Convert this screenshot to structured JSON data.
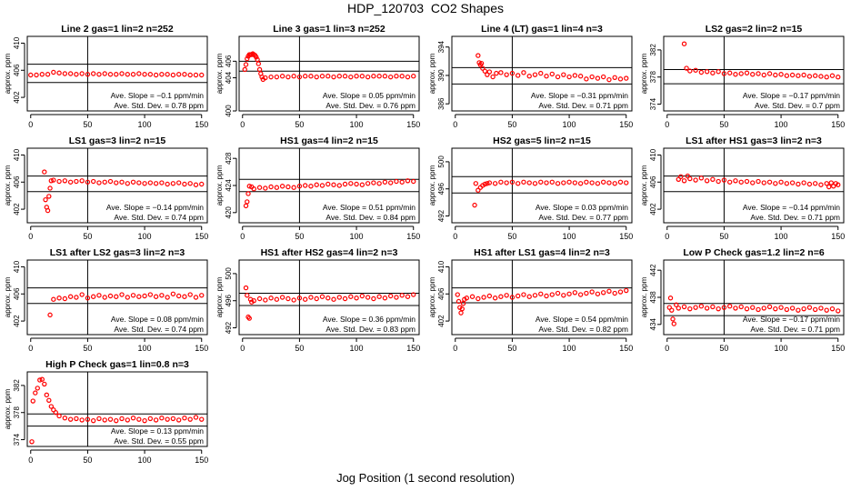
{
  "figure": {
    "title": "HDP_120703  CO2 Shapes",
    "xlabel": "Jog Position (1 second resolution)",
    "colors": {
      "points": "#ff0000",
      "axes": "#000000",
      "background": "#ffffff"
    }
  },
  "chart_data": [
    {
      "type": "scatter",
      "title": "Line 2 gas=1 lin=2 n=252",
      "xlabel": "",
      "ylabel": "approx. ppm",
      "xlim": [
        -3,
        155
      ],
      "xticks": [
        0,
        50,
        100,
        150
      ],
      "ylim": [
        400,
        411
      ],
      "yticks": [
        402,
        406,
        410
      ],
      "hlines": [
        406.9,
        404.2
      ],
      "vline": 50,
      "slope_label": "Ave. Slope =  −0.1  ppm/min",
      "std_label": "Ave. Std. Dev. =  0.78  ppm",
      "x": [
        0,
        5,
        10,
        15,
        20,
        25,
        30,
        35,
        40,
        45,
        50,
        55,
        60,
        65,
        70,
        75,
        80,
        85,
        90,
        95,
        100,
        105,
        110,
        115,
        120,
        125,
        130,
        135,
        140,
        145,
        150
      ],
      "y": [
        405.3,
        405.3,
        405.4,
        405.4,
        405.7,
        405.6,
        405.5,
        405.5,
        405.4,
        405.5,
        405.4,
        405.5,
        405.4,
        405.5,
        405.4,
        405.4,
        405.5,
        405.4,
        405.4,
        405.5,
        405.4,
        405.4,
        405.3,
        405.4,
        405.4,
        405.3,
        405.4,
        405.4,
        405.3,
        405.3,
        405.3
      ]
    },
    {
      "type": "scatter",
      "title": "Line 3 gas=1 lin=3 n=252",
      "xlabel": "",
      "ylabel": "approx. ppm",
      "xlim": [
        -3,
        155
      ],
      "xticks": [
        0,
        50,
        100,
        150
      ],
      "ylim": [
        400,
        409
      ],
      "yticks": [
        400,
        404,
        406
      ],
      "hlines": [
        406.0,
        404.8
      ],
      "vline": 50,
      "slope_label": "Ave. Slope =  0.05  ppm/min",
      "std_label": "Ave. Std. Dev. =  0.76  ppm",
      "x": [
        2,
        3,
        4,
        5,
        6,
        7,
        8,
        9,
        10,
        11,
        12,
        13,
        14,
        15,
        16,
        17,
        18,
        20,
        25,
        30,
        35,
        40,
        45,
        50,
        55,
        60,
        65,
        70,
        75,
        80,
        85,
        90,
        95,
        100,
        105,
        110,
        115,
        120,
        125,
        130,
        135,
        140,
        145,
        150
      ],
      "y": [
        405.0,
        405.6,
        406.3,
        406.6,
        406.8,
        406.8,
        406.8,
        406.9,
        406.8,
        406.7,
        406.5,
        406.2,
        405.7,
        405.0,
        404.5,
        404.1,
        403.8,
        404.0,
        404.1,
        404.1,
        404.2,
        404.1,
        404.2,
        404.1,
        404.2,
        404.2,
        404.1,
        404.2,
        404.2,
        404.1,
        404.2,
        404.2,
        404.1,
        404.2,
        404.2,
        404.1,
        404.2,
        404.2,
        404.2,
        404.1,
        404.2,
        404.2,
        404.1,
        404.2
      ]
    },
    {
      "type": "scatter",
      "title": "Line 4 (LT) gas=1 lin=4 n=3",
      "xlabel": "",
      "ylabel": "approx. ppm",
      "xlim": [
        -3,
        155
      ],
      "xticks": [
        0,
        50,
        100,
        150
      ],
      "ylim": [
        385,
        395.5
      ],
      "yticks": [
        386,
        390,
        394
      ],
      "hlines": [
        391.1,
        388.8
      ],
      "vline": 50,
      "slope_label": "Ave. Slope =  −0.31  ppm/min",
      "std_label": "Ave. Std. Dev. =  0.71  ppm",
      "x": [
        20,
        21,
        22,
        23,
        24,
        26,
        28,
        30,
        33,
        36,
        40,
        45,
        50,
        55,
        60,
        65,
        70,
        75,
        80,
        85,
        90,
        95,
        100,
        105,
        110,
        115,
        120,
        125,
        130,
        135,
        140,
        145,
        150
      ],
      "y": [
        392.8,
        391.8,
        391.5,
        391.7,
        391.0,
        390.6,
        390.1,
        390.5,
        389.8,
        390.3,
        390.4,
        390.1,
        390.3,
        390.0,
        390.4,
        389.9,
        390.1,
        390.3,
        389.9,
        390.2,
        389.8,
        390.1,
        389.8,
        390.0,
        389.9,
        389.5,
        389.8,
        389.6,
        389.8,
        389.4,
        389.7,
        389.5,
        389.6
      ]
    },
    {
      "type": "scatter",
      "title": "LS2 gas=2 lin=2 n=15",
      "xlabel": "",
      "ylabel": "approx. ppm",
      "xlim": [
        -3,
        155
      ],
      "xticks": [
        0,
        50,
        100,
        150
      ],
      "ylim": [
        373,
        384
      ],
      "yticks": [
        374,
        378,
        382
      ],
      "hlines": [
        379.1,
        377.0
      ],
      "vline": 50,
      "slope_label": "Ave. Slope =  −0.17  ppm/min",
      "std_label": "Ave. Std. Dev. =  0.7  ppm",
      "x": [
        15,
        17,
        20,
        25,
        30,
        35,
        40,
        45,
        50,
        55,
        60,
        65,
        70,
        75,
        80,
        85,
        90,
        95,
        100,
        105,
        110,
        115,
        120,
        125,
        130,
        135,
        140,
        145,
        150
      ],
      "y": [
        382.9,
        379.3,
        378.9,
        379.0,
        378.7,
        378.8,
        378.6,
        378.8,
        378.5,
        378.6,
        378.4,
        378.5,
        378.6,
        378.4,
        378.5,
        378.3,
        378.5,
        378.3,
        378.4,
        378.2,
        378.3,
        378.2,
        378.3,
        378.1,
        378.2,
        378.1,
        378.0,
        378.2,
        378.0
      ]
    },
    {
      "type": "scatter",
      "title": "LS1 gas=3 lin=2 n=15",
      "xlabel": "",
      "ylabel": "approx. ppm",
      "xlim": [
        -3,
        155
      ],
      "xticks": [
        0,
        50,
        100,
        150
      ],
      "ylim": [
        400,
        411
      ],
      "yticks": [
        402,
        406,
        410
      ],
      "hlines": [
        406.9,
        404.6
      ],
      "vline": 50,
      "slope_label": "Ave. Slope =  −0.14  ppm/min",
      "std_label": "Ave. Std. Dev. =  0.74  ppm",
      "x": [
        12,
        13,
        14,
        15,
        16,
        17,
        18,
        20,
        25,
        30,
        35,
        40,
        45,
        50,
        55,
        60,
        65,
        70,
        75,
        80,
        85,
        90,
        95,
        100,
        105,
        110,
        115,
        120,
        125,
        130,
        135,
        140,
        145,
        150
      ],
      "y": [
        407.5,
        403.4,
        402.3,
        401.8,
        403.9,
        405.1,
        406.2,
        406.3,
        406.1,
        406.2,
        406.0,
        406.1,
        406.2,
        406.0,
        406.1,
        405.9,
        406.0,
        406.1,
        405.9,
        406.0,
        405.8,
        406.0,
        405.9,
        405.8,
        405.9,
        405.8,
        405.9,
        405.7,
        405.8,
        405.9,
        405.7,
        405.8,
        405.6,
        405.7
      ]
    },
    {
      "type": "scatter",
      "title": "HS1 gas=4 lin=2 n=15",
      "xlabel": "",
      "ylabel": "approx. ppm",
      "xlim": [
        -3,
        155
      ],
      "xticks": [
        0,
        50,
        100,
        150
      ],
      "ylim": [
        418.5,
        429.5
      ],
      "yticks": [
        420,
        424,
        428
      ],
      "hlines": [
        424.9,
        423.1
      ],
      "vline": 50,
      "slope_label": "Ave. Slope =  0.51  ppm/min",
      "std_label": "Ave. Std. Dev. =  0.84  ppm",
      "x": [
        3,
        4,
        5,
        6,
        8,
        10,
        15,
        20,
        25,
        30,
        35,
        40,
        45,
        50,
        55,
        60,
        65,
        70,
        75,
        80,
        85,
        90,
        95,
        100,
        105,
        110,
        115,
        120,
        125,
        130,
        135,
        140,
        145,
        150
      ],
      "y": [
        421.0,
        421.6,
        422.8,
        423.9,
        423.8,
        423.5,
        423.7,
        423.6,
        423.8,
        423.7,
        423.9,
        423.8,
        423.7,
        423.9,
        424.0,
        423.9,
        424.1,
        424.0,
        424.2,
        424.1,
        424.0,
        424.2,
        424.3,
        424.2,
        424.1,
        424.3,
        424.4,
        424.3,
        424.5,
        424.4,
        424.6,
        424.5,
        424.7,
        424.6
      ]
    },
    {
      "type": "scatter",
      "title": "HS2 gas=5 lin=2 n=15",
      "xlabel": "",
      "ylabel": "approx. ppm",
      "xlim": [
        -3,
        155
      ],
      "xticks": [
        0,
        50,
        100,
        150
      ],
      "ylim": [
        491,
        502
      ],
      "yticks": [
        492,
        496,
        500
      ],
      "hlines": [
        497.8,
        495.4
      ],
      "vline": 50,
      "slope_label": "Ave. Slope =  0.03  ppm/min",
      "std_label": "Ave. Std. Dev. =  0.77  ppm",
      "x": [
        17,
        18,
        20,
        22,
        24,
        26,
        28,
        30,
        35,
        40,
        45,
        50,
        55,
        60,
        65,
        70,
        75,
        80,
        85,
        90,
        95,
        100,
        105,
        110,
        115,
        120,
        125,
        130,
        135,
        140,
        145,
        150
      ],
      "y": [
        493.6,
        496.8,
        495.8,
        496.2,
        496.5,
        496.7,
        496.8,
        496.9,
        496.8,
        497.0,
        496.9,
        497.0,
        496.8,
        497.0,
        496.9,
        496.8,
        497.0,
        496.9,
        497.0,
        496.8,
        496.9,
        497.0,
        496.9,
        496.8,
        497.0,
        496.9,
        496.8,
        497.0,
        496.9,
        496.8,
        497.0,
        496.9
      ]
    },
    {
      "type": "scatter",
      "title": "LS1 after HS1 gas=3 lin=2 n=3",
      "xlabel": "",
      "ylabel": "approx. ppm",
      "xlim": [
        -3,
        155
      ],
      "xticks": [
        0,
        50,
        100,
        150
      ],
      "ylim": [
        400,
        411
      ],
      "yticks": [
        402,
        406,
        410
      ],
      "hlines": [
        406.9,
        404.6
      ],
      "vline": 50,
      "slope_label": "Ave. Slope =  −0.14  ppm/min",
      "std_label": "Ave. Std. Dev. =  0.71  ppm",
      "x": [
        10,
        12,
        15,
        18,
        20,
        25,
        30,
        35,
        40,
        45,
        50,
        55,
        60,
        65,
        70,
        75,
        80,
        85,
        90,
        95,
        100,
        105,
        110,
        115,
        120,
        125,
        130,
        135,
        140,
        142,
        144,
        146,
        148,
        150
      ],
      "y": [
        406.4,
        406.8,
        406.2,
        406.9,
        406.5,
        406.3,
        406.6,
        406.2,
        406.4,
        406.1,
        406.3,
        406.0,
        406.2,
        406.0,
        406.1,
        405.9,
        406.1,
        405.9,
        406.0,
        405.8,
        406.0,
        405.8,
        405.9,
        405.7,
        405.9,
        405.7,
        405.8,
        405.6,
        405.8,
        405.3,
        405.9,
        405.4,
        405.8,
        405.6
      ]
    },
    {
      "type": "scatter",
      "title": "LS1 after LS2 gas=3 lin=2 n=3",
      "xlabel": "",
      "ylabel": "approx. ppm",
      "xlim": [
        -3,
        155
      ],
      "xticks": [
        0,
        50,
        100,
        150
      ],
      "ylim": [
        400,
        411
      ],
      "yticks": [
        402,
        406,
        410
      ],
      "hlines": [
        406.9,
        404.6
      ],
      "vline": 50,
      "slope_label": "Ave. Slope =  0.08  ppm/min",
      "std_label": "Ave. Std. Dev. =  0.74  ppm",
      "x": [
        17,
        20,
        25,
        30,
        35,
        40,
        45,
        50,
        55,
        60,
        65,
        70,
        75,
        80,
        85,
        90,
        95,
        100,
        105,
        110,
        115,
        120,
        125,
        130,
        135,
        140,
        145,
        150
      ],
      "y": [
        402.9,
        405.2,
        405.4,
        405.3,
        405.6,
        405.5,
        405.9,
        405.4,
        405.6,
        405.8,
        405.5,
        405.7,
        405.6,
        405.9,
        405.5,
        405.8,
        405.6,
        405.7,
        405.9,
        405.6,
        405.8,
        405.5,
        406.0,
        405.7,
        405.6,
        405.9,
        405.5,
        405.8
      ]
    },
    {
      "type": "scatter",
      "title": "HS1 after HS2 gas=4 lin=2 n=3",
      "xlabel": "",
      "ylabel": "approx. ppm",
      "xlim": [
        -3,
        155
      ],
      "xticks": [
        0,
        50,
        100,
        150
      ],
      "ylim": [
        491,
        502
      ],
      "yticks": [
        492,
        496,
        500
      ],
      "hlines": [
        497.1,
        495.3
      ],
      "vline": 50,
      "slope_label": "Ave. Slope =  0.36  ppm/min",
      "std_label": "Ave. Std. Dev. =  0.83  ppm",
      "x": [
        3,
        4,
        5,
        6,
        7,
        8,
        10,
        15,
        20,
        25,
        30,
        35,
        40,
        45,
        50,
        55,
        60,
        65,
        70,
        75,
        80,
        85,
        90,
        95,
        100,
        105,
        110,
        115,
        120,
        125,
        130,
        135,
        140,
        145,
        150
      ],
      "y": [
        497.9,
        496.8,
        493.6,
        493.4,
        496.2,
        495.8,
        496.0,
        496.3,
        496.1,
        496.4,
        496.2,
        496.5,
        496.3,
        496.1,
        496.4,
        496.2,
        496.5,
        496.3,
        496.6,
        496.4,
        496.2,
        496.5,
        496.3,
        496.6,
        496.4,
        496.7,
        496.5,
        496.3,
        496.6,
        496.4,
        496.7,
        496.5,
        496.8,
        496.6,
        496.9
      ]
    },
    {
      "type": "scatter",
      "title": "HS1 after LS1 gas=4 lin=2 n=3",
      "xlabel": "",
      "ylabel": "approx. ppm",
      "xlim": [
        -3,
        155
      ],
      "xticks": [
        0,
        50,
        100,
        150
      ],
      "ylim": [
        400,
        411
      ],
      "yticks": [
        402,
        406,
        410
      ],
      "hlines": [
        406.9,
        404.7
      ],
      "vline": 50,
      "slope_label": "Ave. Slope =  0.54  ppm/min",
      "std_label": "Ave. Std. Dev. =  0.82  ppm",
      "x": [
        2,
        3,
        4,
        5,
        6,
        7,
        8,
        10,
        15,
        20,
        25,
        30,
        35,
        40,
        45,
        50,
        55,
        60,
        65,
        70,
        75,
        80,
        85,
        90,
        95,
        100,
        105,
        110,
        115,
        120,
        125,
        130,
        135,
        140,
        145,
        150
      ],
      "y": [
        405.9,
        404.9,
        404.0,
        403.2,
        403.8,
        404.6,
        405.2,
        405.4,
        405.6,
        405.3,
        405.5,
        405.7,
        405.4,
        405.6,
        405.8,
        405.5,
        405.7,
        405.9,
        405.6,
        405.8,
        406.0,
        405.7,
        405.9,
        406.1,
        405.8,
        406.0,
        406.2,
        405.9,
        406.1,
        406.3,
        406.0,
        406.2,
        406.4,
        406.1,
        406.3,
        406.5
      ]
    },
    {
      "type": "scatter",
      "title": "Low P Check gas=1.2 lin=2 n=6",
      "xlabel": "",
      "ylabel": "approx. ppm",
      "xlim": [
        -3,
        155
      ],
      "xticks": [
        0,
        50,
        100,
        150
      ],
      "ylim": [
        432.5,
        443.5
      ],
      "yticks": [
        434,
        438,
        442
      ],
      "hlines": [
        437.1,
        435.3
      ],
      "vline": 50,
      "slope_label": "Ave. Slope =  −0.17  ppm/min",
      "std_label": "Ave. Std. Dev. =  0.71  ppm",
      "x": [
        2,
        3,
        4,
        5,
        6,
        8,
        10,
        15,
        20,
        25,
        30,
        35,
        40,
        45,
        50,
        55,
        60,
        65,
        70,
        75,
        80,
        85,
        90,
        95,
        100,
        105,
        110,
        115,
        120,
        125,
        130,
        135,
        140,
        145,
        150
      ],
      "y": [
        436.5,
        437.9,
        436.1,
        434.8,
        434.1,
        436.9,
        436.4,
        436.6,
        436.3,
        436.5,
        436.7,
        436.4,
        436.6,
        436.3,
        436.5,
        436.7,
        436.4,
        436.6,
        436.3,
        436.5,
        436.2,
        436.4,
        436.6,
        436.3,
        436.5,
        436.2,
        436.4,
        436.1,
        436.3,
        436.5,
        436.2,
        436.4,
        436.1,
        436.3,
        436.0
      ]
    },
    {
      "type": "scatter",
      "title": "High P Check gas=1 lin=0.8 n=3",
      "xlabel": "",
      "ylabel": "approx. ppm",
      "xlim": [
        -3,
        155
      ],
      "xticks": [
        0,
        50,
        100,
        150
      ],
      "ylim": [
        373,
        384
      ],
      "yticks": [
        374,
        378,
        382
      ],
      "hlines": [
        377.8,
        376.0
      ],
      "vline": 50,
      "slope_label": "Ave. Slope =  0.13  ppm/min",
      "std_label": "Ave. Std. Dev. =  0.55  ppm",
      "x": [
        1,
        2,
        4,
        6,
        8,
        10,
        12,
        14,
        16,
        18,
        20,
        22,
        25,
        30,
        35,
        40,
        45,
        50,
        55,
        60,
        65,
        70,
        75,
        80,
        85,
        90,
        95,
        100,
        105,
        110,
        115,
        120,
        125,
        130,
        135,
        140,
        145,
        150
      ],
      "y": [
        373.7,
        379.7,
        380.9,
        381.6,
        382.8,
        382.9,
        382.2,
        380.6,
        379.8,
        378.9,
        378.4,
        378.0,
        377.5,
        377.2,
        377.0,
        377.1,
        376.9,
        377.0,
        376.8,
        377.1,
        376.9,
        377.0,
        376.8,
        377.1,
        376.9,
        377.2,
        377.0,
        376.8,
        377.1,
        376.9,
        377.2,
        377.0,
        377.1,
        376.9,
        377.2,
        377.0,
        377.3,
        377.0
      ]
    }
  ]
}
